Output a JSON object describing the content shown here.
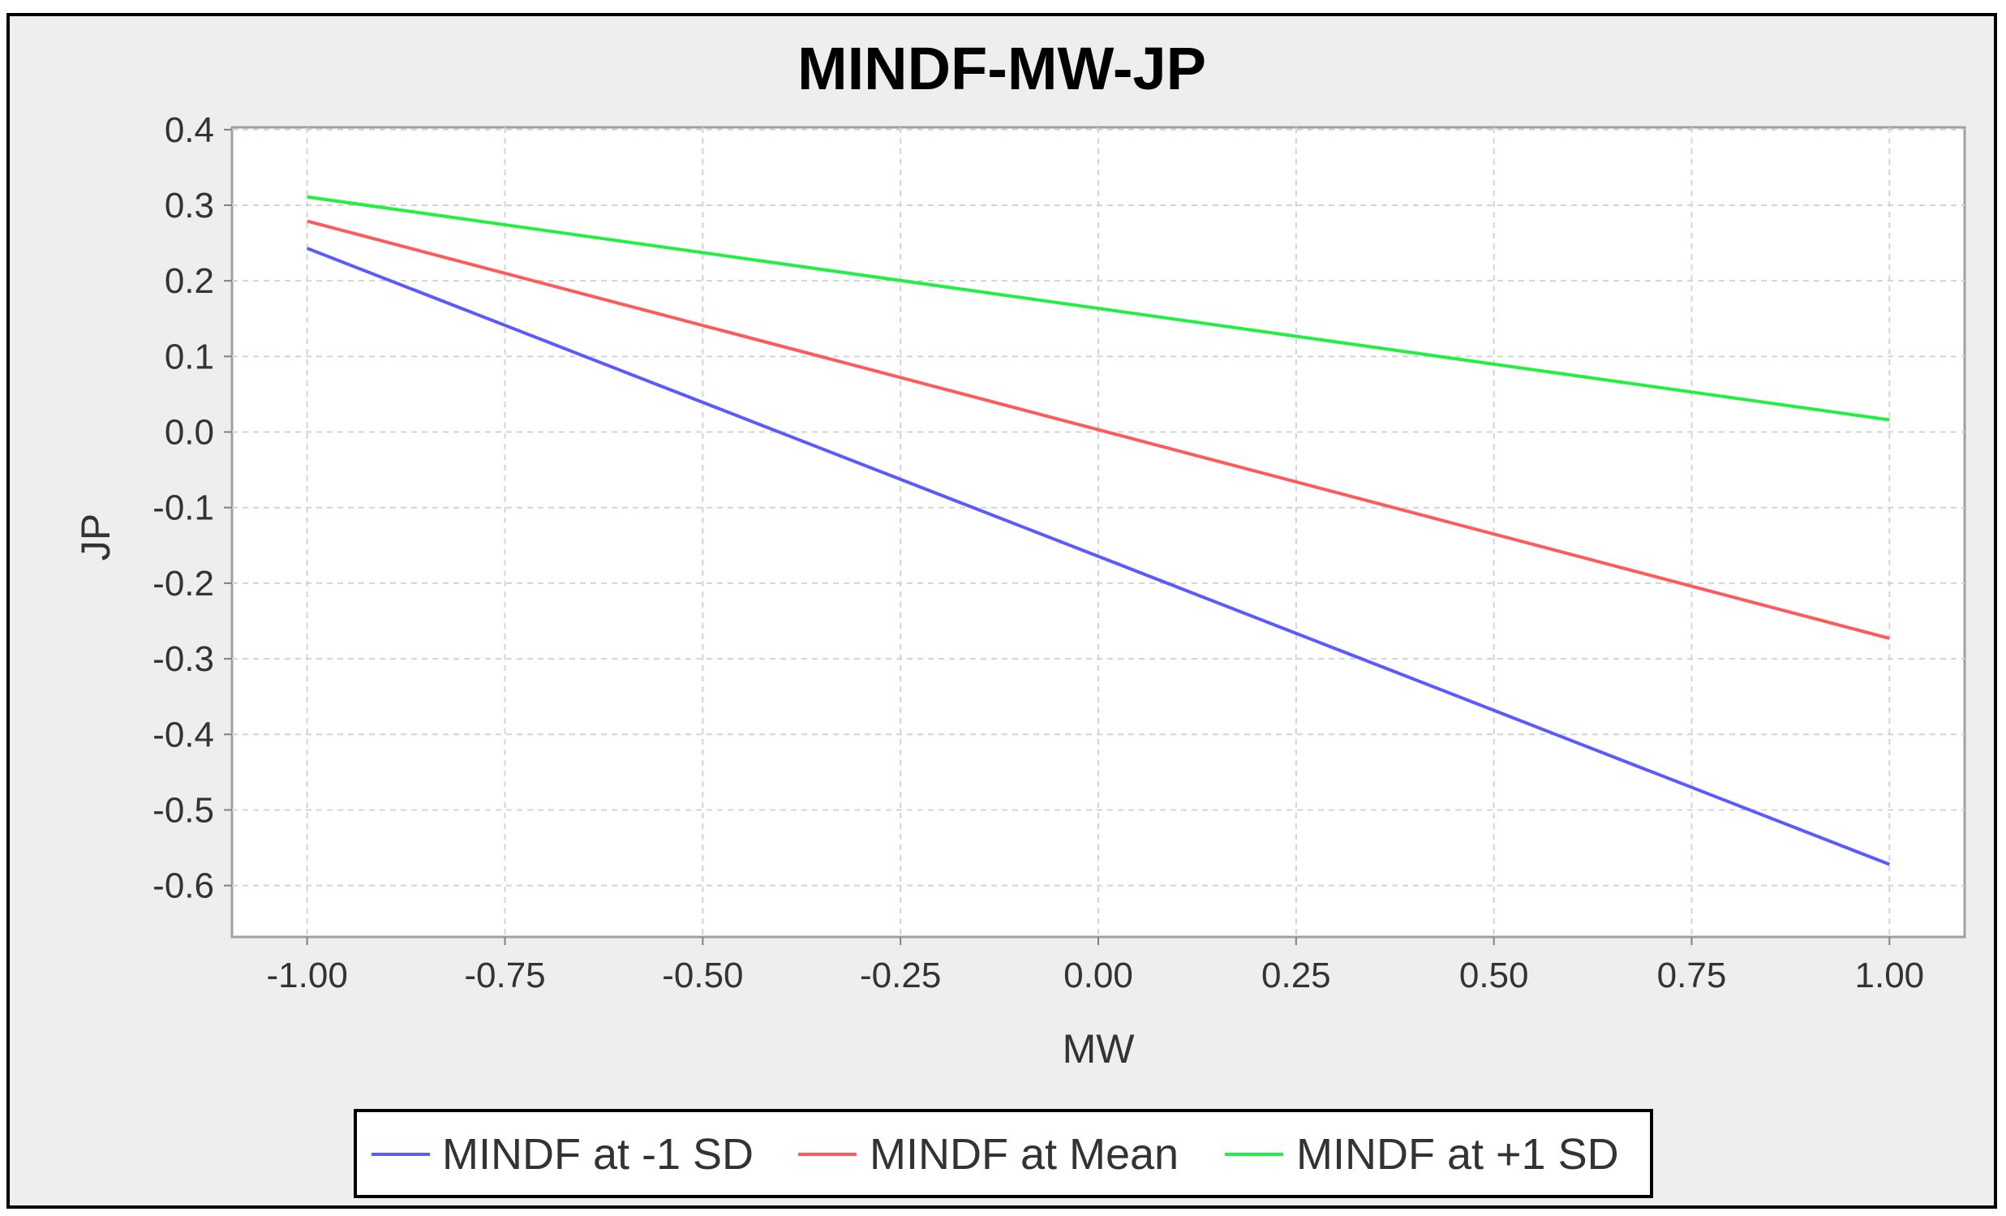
{
  "chart_data": {
    "type": "line",
    "title": "MINDF-MW-JP",
    "xlabel": "MW",
    "ylabel": "JP",
    "x": [
      -1.0,
      1.0
    ],
    "xlim": [
      -1.095,
      1.095
    ],
    "ylim": [
      -0.668,
      0.403
    ],
    "xticks": [
      -1.0,
      -0.75,
      -0.5,
      -0.25,
      0.0,
      0.25,
      0.5,
      0.75,
      1.0
    ],
    "xtick_labels": [
      "-1.00",
      "-0.75",
      "-0.50",
      "-0.25",
      "0.00",
      "0.25",
      "0.50",
      "0.75",
      "1.00"
    ],
    "yticks": [
      0.4,
      0.3,
      0.2,
      0.1,
      0.0,
      -0.1,
      -0.2,
      -0.3,
      -0.4,
      -0.5,
      -0.6
    ],
    "ytick_labels": [
      "0.4",
      "0.3",
      "0.2",
      "0.1",
      "0.0",
      "-0.1",
      "-0.2",
      "-0.3",
      "-0.4",
      "-0.5",
      "-0.6"
    ],
    "grid": true,
    "legend_position": "bottom",
    "series": [
      {
        "name": "MINDF at -1 SD",
        "color": "#5a5aff",
        "values": [
          0.243,
          -0.572
        ]
      },
      {
        "name": "MINDF at Mean",
        "color": "#ff5a5a",
        "values": [
          0.279,
          -0.273
        ]
      },
      {
        "name": "MINDF at +1 SD",
        "color": "#22ee44",
        "values": [
          0.311,
          0.016
        ]
      }
    ]
  }
}
